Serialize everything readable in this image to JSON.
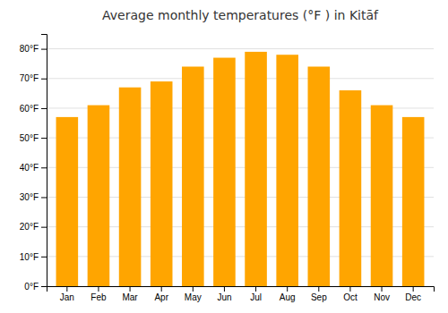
{
  "chart_data": {
    "type": "bar",
    "title": "Average monthly temperatures (°F ) in Kitāf",
    "categories": [
      "Jan",
      "Feb",
      "Mar",
      "Apr",
      "May",
      "Jun",
      "Jul",
      "Aug",
      "Sep",
      "Oct",
      "Nov",
      "Dec"
    ],
    "values": [
      57,
      61,
      67,
      69,
      74,
      77,
      79,
      78,
      74,
      66,
      61,
      57
    ],
    "color": "#FFA500",
    "ylim": [
      0,
      85
    ],
    "yticks": [
      {
        "value": 0,
        "label": "0°F"
      },
      {
        "value": 10,
        "label": "10°F"
      },
      {
        "value": 20,
        "label": "20°F"
      },
      {
        "value": 30,
        "label": "30°F"
      },
      {
        "value": 40,
        "label": "40°F"
      },
      {
        "value": 50,
        "label": "50°F"
      },
      {
        "value": 60,
        "label": "60°F"
      },
      {
        "value": 70,
        "label": "70°F"
      },
      {
        "value": 80,
        "label": "80°F"
      }
    ],
    "grid": true
  }
}
